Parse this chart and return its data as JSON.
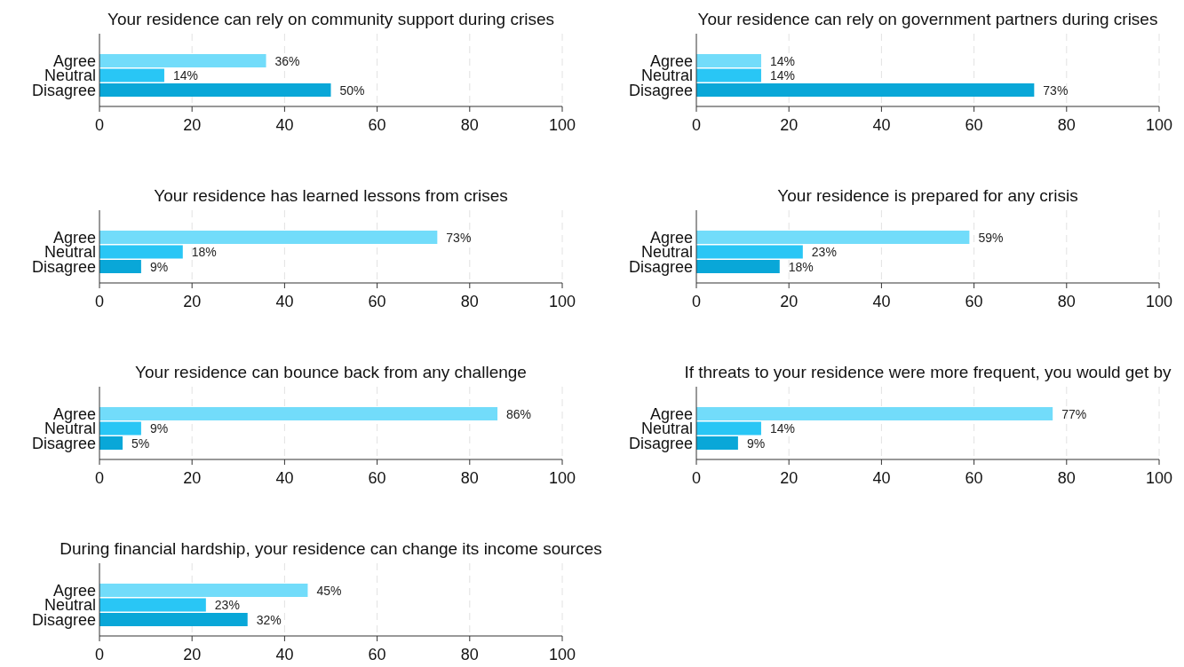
{
  "chart_data": [
    {
      "type": "bar",
      "orientation": "horizontal",
      "title": "Your residence can rely on community support during crises",
      "categories": [
        "Agree",
        "Neutral",
        "Disagree"
      ],
      "values": [
        36,
        14,
        50
      ],
      "value_labels": [
        "36%",
        "14%",
        "50%"
      ],
      "colors": [
        "#72dcfa",
        "#29c6f5",
        "#09a7d8"
      ],
      "xlim": [
        0,
        100
      ],
      "xticks": [
        0,
        20,
        40,
        60,
        80,
        100
      ],
      "grid": "x"
    },
    {
      "type": "bar",
      "orientation": "horizontal",
      "title": "Your residence can rely on government partners during crises",
      "categories": [
        "Agree",
        "Neutral",
        "Disagree"
      ],
      "values": [
        14,
        14,
        73
      ],
      "value_labels": [
        "14%",
        "14%",
        "73%"
      ],
      "colors": [
        "#72dcfa",
        "#29c6f5",
        "#09a7d8"
      ],
      "xlim": [
        0,
        100
      ],
      "xticks": [
        0,
        20,
        40,
        60,
        80,
        100
      ],
      "grid": "x"
    },
    {
      "type": "bar",
      "orientation": "horizontal",
      "title": "Your residence has learned lessons from crises",
      "categories": [
        "Agree",
        "Neutral",
        "Disagree"
      ],
      "values": [
        73,
        18,
        9
      ],
      "value_labels": [
        "73%",
        "18%",
        "9%"
      ],
      "colors": [
        "#72dcfa",
        "#29c6f5",
        "#09a7d8"
      ],
      "xlim": [
        0,
        100
      ],
      "xticks": [
        0,
        20,
        40,
        60,
        80,
        100
      ],
      "grid": "x"
    },
    {
      "type": "bar",
      "orientation": "horizontal",
      "title": "Your residence is prepared for any crisis",
      "categories": [
        "Agree",
        "Neutral",
        "Disagree"
      ],
      "values": [
        59,
        23,
        18
      ],
      "value_labels": [
        "59%",
        "23%",
        "18%"
      ],
      "colors": [
        "#72dcfa",
        "#29c6f5",
        "#09a7d8"
      ],
      "xlim": [
        0,
        100
      ],
      "xticks": [
        0,
        20,
        40,
        60,
        80,
        100
      ],
      "grid": "x"
    },
    {
      "type": "bar",
      "orientation": "horizontal",
      "title": "Your residence can bounce back from any challenge",
      "categories": [
        "Agree",
        "Neutral",
        "Disagree"
      ],
      "values": [
        86,
        9,
        5
      ],
      "value_labels": [
        "86%",
        "9%",
        "5%"
      ],
      "colors": [
        "#72dcfa",
        "#29c6f5",
        "#09a7d8"
      ],
      "xlim": [
        0,
        100
      ],
      "xticks": [
        0,
        20,
        40,
        60,
        80,
        100
      ],
      "grid": "x"
    },
    {
      "type": "bar",
      "orientation": "horizontal",
      "title": "If threats to your residence were more frequent, you would get by",
      "categories": [
        "Agree",
        "Neutral",
        "Disagree"
      ],
      "values": [
        77,
        14,
        9
      ],
      "value_labels": [
        "77%",
        "14%",
        "9%"
      ],
      "colors": [
        "#72dcfa",
        "#29c6f5",
        "#09a7d8"
      ],
      "xlim": [
        0,
        100
      ],
      "xticks": [
        0,
        20,
        40,
        60,
        80,
        100
      ],
      "grid": "x"
    },
    {
      "type": "bar",
      "orientation": "horizontal",
      "title": "During financial hardship, your residence can change its income sources",
      "categories": [
        "Agree",
        "Neutral",
        "Disagree"
      ],
      "values": [
        45,
        23,
        32
      ],
      "value_labels": [
        "45%",
        "23%",
        "32%"
      ],
      "colors": [
        "#72dcfa",
        "#29c6f5",
        "#09a7d8"
      ],
      "xlim": [
        0,
        100
      ],
      "xticks": [
        0,
        20,
        40,
        60,
        80,
        100
      ],
      "grid": "x"
    }
  ]
}
